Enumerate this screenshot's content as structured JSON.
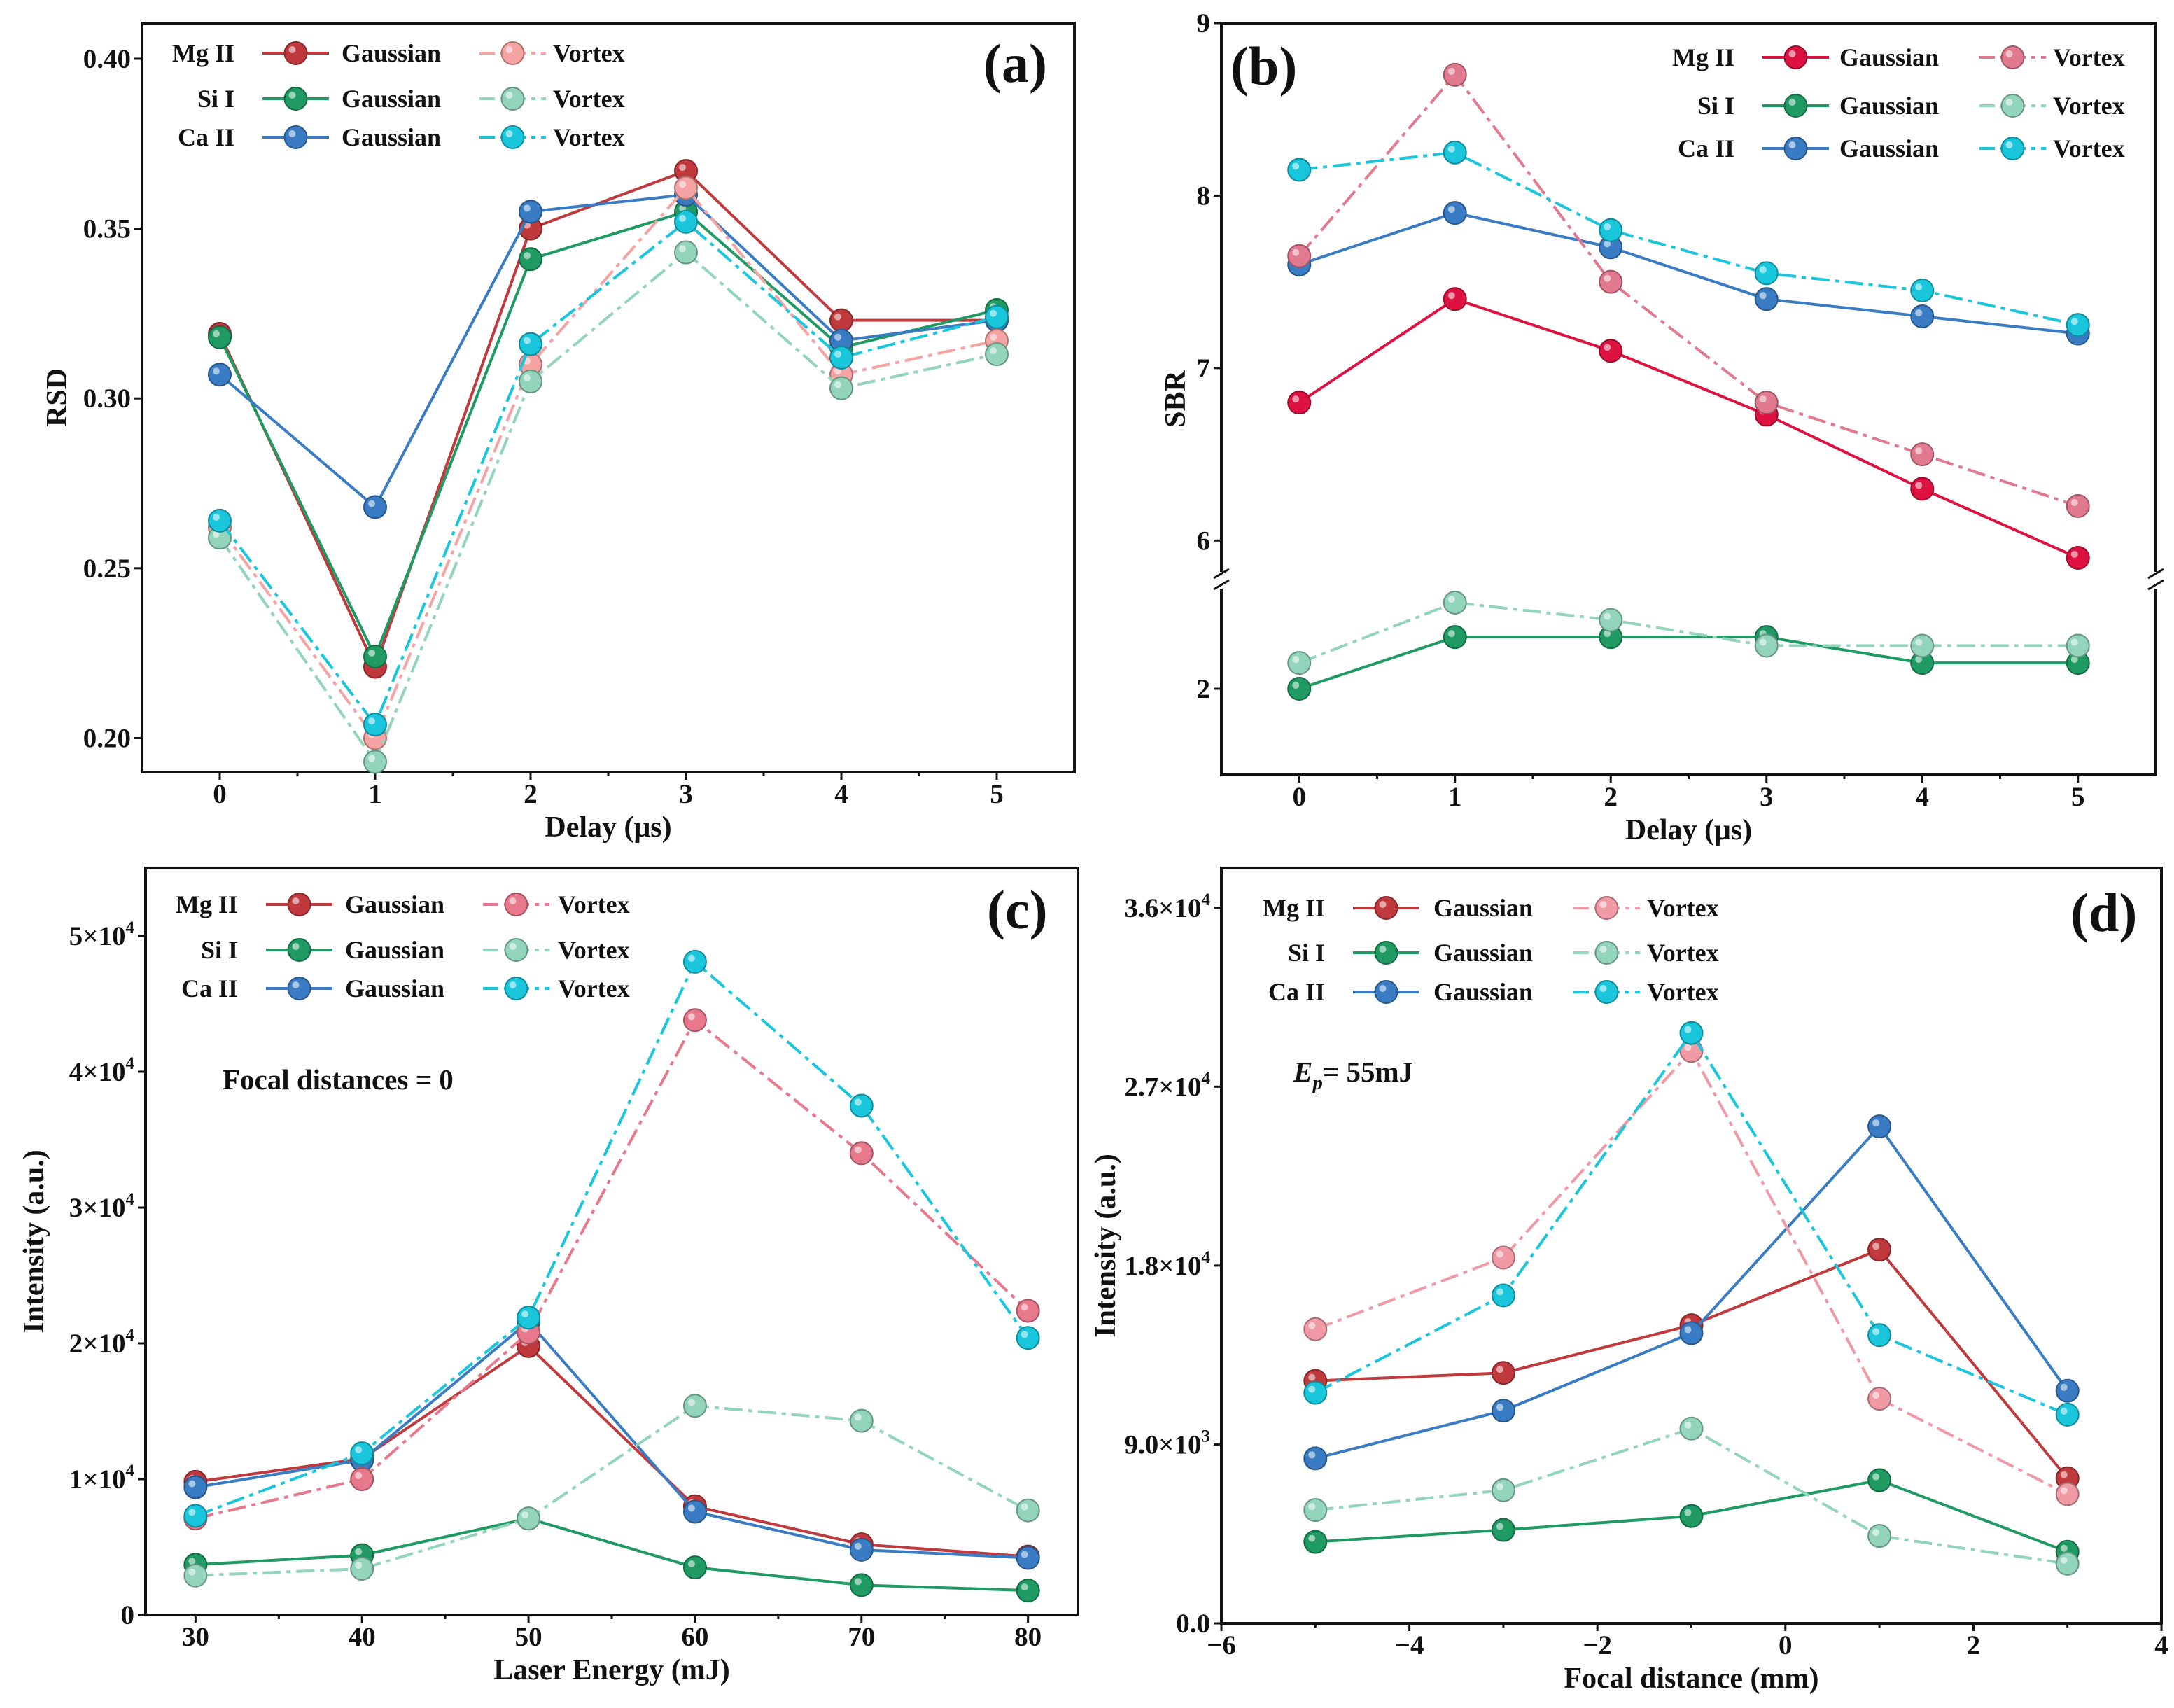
{
  "chart_data": [
    {
      "id": "a",
      "type": "line",
      "panel_label": "(a)",
      "xlabel": "Delay (μs)",
      "ylabel": "RSD",
      "xlim": [
        -0.5,
        5.5
      ],
      "ylim": [
        0.19,
        0.4105
      ],
      "xticks": [
        {
          "v": 0,
          "label": "0"
        },
        {
          "v": 1,
          "label": "1"
        },
        {
          "v": 2,
          "label": "2"
        },
        {
          "v": 3,
          "label": "3"
        },
        {
          "v": 4,
          "label": "4"
        },
        {
          "v": 5,
          "label": "5"
        }
      ],
      "yticks": [
        {
          "v": 0.2,
          "label": "0.20"
        },
        {
          "v": 0.25,
          "label": "0.25"
        },
        {
          "v": 0.3,
          "label": "0.30"
        },
        {
          "v": 0.35,
          "label": "0.35"
        },
        {
          "v": 0.4,
          "label": "0.40"
        }
      ],
      "x": [
        0,
        1,
        2,
        3,
        4,
        5
      ],
      "series": [
        {
          "element": "Mg II",
          "beam": "Gaussian",
          "color": "#c0393d",
          "values": [
            0.319,
            0.221,
            0.35,
            0.367,
            0.323,
            0.323
          ]
        },
        {
          "element": "Si  I",
          "beam": "Gaussian",
          "color": "#1f9a63",
          "values": [
            0.318,
            0.224,
            0.341,
            0.355,
            0.315,
            0.326
          ]
        },
        {
          "element": "Ca II",
          "beam": "Gaussian",
          "color": "#3a7cc4",
          "values": [
            0.307,
            0.268,
            0.355,
            0.36,
            0.317,
            0.323
          ]
        },
        {
          "element": "Mg II",
          "beam": "Vortex",
          "color": "#f5a3a3",
          "values": [
            0.262,
            0.2,
            0.31,
            0.362,
            0.307,
            0.317
          ]
        },
        {
          "element": "Si  I",
          "beam": "Vortex",
          "color": "#93d5bb",
          "values": [
            0.259,
            0.193,
            0.305,
            0.343,
            0.303,
            0.313
          ]
        },
        {
          "element": "Ca II",
          "beam": "Vortex",
          "color": "#19c6dc",
          "values": [
            0.264,
            0.204,
            0.316,
            0.352,
            0.312,
            0.324
          ]
        }
      ],
      "legend": {
        "placement": "top-left",
        "rows": [
          "Mg II",
          "Si  I",
          "Ca II"
        ],
        "gaussian": "Gaussian",
        "vortex": "Vortex"
      }
    },
    {
      "id": "b",
      "type": "line",
      "panel_label": "(b)",
      "xlabel": "Delay (μs)",
      "ylabel": "SBR",
      "xlim": [
        -0.5,
        5.5
      ],
      "ylim": [
        1.5,
        9.0
      ],
      "y_break": {
        "lower_range": [
          1.5,
          2.63
        ],
        "upper_range": [
          5.77,
          9.0
        ]
      },
      "xticks": [
        {
          "v": 0,
          "label": "0"
        },
        {
          "v": 1,
          "label": "1"
        },
        {
          "v": 2,
          "label": "2"
        },
        {
          "v": 3,
          "label": "3"
        },
        {
          "v": 4,
          "label": "4"
        },
        {
          "v": 5,
          "label": "5"
        }
      ],
      "yticks": [
        {
          "v": 2,
          "label": "2"
        },
        {
          "v": 6,
          "label": "6"
        },
        {
          "v": 7,
          "label": "7"
        },
        {
          "v": 8,
          "label": "8"
        },
        {
          "v": 9,
          "label": "9"
        }
      ],
      "x": [
        0,
        1,
        2,
        3,
        4,
        5
      ],
      "series": [
        {
          "element": "Mg II",
          "beam": "Gaussian",
          "color": "#de1240",
          "values": [
            6.8,
            7.4,
            7.1,
            6.73,
            6.3,
            5.9
          ]
        },
        {
          "element": "Si  I",
          "beam": "Gaussian",
          "color": "#1f9a63",
          "values": [
            2.0,
            2.3,
            2.3,
            2.3,
            2.15,
            2.15
          ]
        },
        {
          "element": "Ca II",
          "beam": "Gaussian",
          "color": "#3a7cc4",
          "values": [
            7.6,
            7.9,
            7.7,
            7.4,
            7.3,
            7.2
          ]
        },
        {
          "element": "Mg II",
          "beam": "Vortex",
          "color": "#e27a8f",
          "values": [
            7.65,
            8.7,
            7.5,
            6.8,
            6.5,
            6.2
          ]
        },
        {
          "element": "Si  I",
          "beam": "Vortex",
          "color": "#93d5bb",
          "values": [
            2.15,
            2.5,
            2.4,
            2.25,
            2.25,
            2.25
          ]
        },
        {
          "element": "Ca II",
          "beam": "Vortex",
          "color": "#19c6dc",
          "values": [
            8.15,
            8.25,
            7.8,
            7.55,
            7.45,
            7.25
          ]
        }
      ],
      "legend": {
        "placement": "top-right",
        "rows": [
          "Mg II",
          "Si  I",
          "Ca II"
        ],
        "gaussian": "Gaussian",
        "vortex": "Vortex"
      }
    },
    {
      "id": "c",
      "type": "line",
      "panel_label": "(c)",
      "xlabel": "Laser Energy (mJ)",
      "ylabel": "Intensity (a.u.)",
      "xlim": [
        27,
        83
      ],
      "ylim": [
        0,
        55000
      ],
      "xticks": [
        {
          "v": 30,
          "label": "30"
        },
        {
          "v": 40,
          "label": "40"
        },
        {
          "v": 50,
          "label": "50"
        },
        {
          "v": 60,
          "label": "60"
        },
        {
          "v": 70,
          "label": "70"
        },
        {
          "v": 80,
          "label": "80"
        }
      ],
      "yticks": [
        {
          "v": 0,
          "label": "0"
        },
        {
          "v": 10000,
          "label": "1×10",
          "sup": "4"
        },
        {
          "v": 20000,
          "label": "2×10",
          "sup": "4"
        },
        {
          "v": 30000,
          "label": "3×10",
          "sup": "4"
        },
        {
          "v": 40000,
          "label": "4×10",
          "sup": "4"
        },
        {
          "v": 50000,
          "label": "5×10",
          "sup": "4"
        }
      ],
      "x": [
        30,
        40,
        50,
        60,
        70,
        80
      ],
      "series": [
        {
          "element": "Mg II",
          "beam": "Gaussian",
          "color": "#c0393d",
          "values": [
            9800,
            11500,
            19800,
            8000,
            5200,
            4300
          ]
        },
        {
          "element": "Si  I",
          "beam": "Gaussian",
          "color": "#1f9a63",
          "values": [
            3700,
            4400,
            7100,
            3500,
            2200,
            1800
          ]
        },
        {
          "element": "Ca II",
          "beam": "Gaussian",
          "color": "#3a7cc4",
          "values": [
            9400,
            11400,
            21600,
            7600,
            4800,
            4200
          ]
        },
        {
          "element": "Mg II",
          "beam": "Vortex",
          "color": "#e8788c",
          "values": [
            7100,
            10000,
            20800,
            43800,
            34000,
            22400
          ]
        },
        {
          "element": "Si  I",
          "beam": "Vortex",
          "color": "#93d5bb",
          "values": [
            2900,
            3400,
            7100,
            15400,
            14300,
            7700
          ]
        },
        {
          "element": "Ca II",
          "beam": "Vortex",
          "color": "#19c6dc",
          "values": [
            7300,
            11900,
            21900,
            48100,
            37500,
            20400
          ]
        }
      ],
      "legend": {
        "placement": "top-left",
        "rows": [
          "Mg II",
          "Si  I",
          "Ca II"
        ],
        "gaussian": "Gaussian",
        "vortex": "Vortex"
      },
      "annotation": {
        "text": "Focal distances = 0"
      }
    },
    {
      "id": "d",
      "type": "line",
      "panel_label": "(d)",
      "xlabel": "Focal distance (mm)",
      "ylabel": "Intensity (a.u.)",
      "xlim": [
        -6,
        4
      ],
      "ylim": [
        0,
        38000
      ],
      "xticks": [
        {
          "v": -6,
          "label": "−6"
        },
        {
          "v": -4,
          "label": "−4"
        },
        {
          "v": -2,
          "label": "−2"
        },
        {
          "v": 0,
          "label": "0"
        },
        {
          "v": 2,
          "label": "2"
        },
        {
          "v": 4,
          "label": "4"
        }
      ],
      "yticks": [
        {
          "v": 0,
          "label": "0.0"
        },
        {
          "v": 9000,
          "label": "9.0×10",
          "sup": "3"
        },
        {
          "v": 18000,
          "label": "1.8×10",
          "sup": "4"
        },
        {
          "v": 27000,
          "label": "2.7×10",
          "sup": "4"
        },
        {
          "v": 36000,
          "label": "3.6×10",
          "sup": "4"
        }
      ],
      "x": [
        -5,
        -3,
        -1,
        1,
        3
      ],
      "series": [
        {
          "element": "Mg II",
          "beam": "Gaussian",
          "color": "#c0393d",
          "values": [
            12200,
            12600,
            15000,
            18800,
            7300
          ]
        },
        {
          "element": "Si  I",
          "beam": "Gaussian",
          "color": "#1f9a63",
          "values": [
            4100,
            4700,
            5400,
            7200,
            3600
          ]
        },
        {
          "element": "Ca II",
          "beam": "Gaussian",
          "color": "#3a7cc4",
          "values": [
            8300,
            10700,
            14600,
            25000,
            11700
          ]
        },
        {
          "element": "Mg II",
          "beam": "Vortex",
          "color": "#f09aa5",
          "values": [
            14800,
            18400,
            28800,
            11300,
            6500
          ]
        },
        {
          "element": "Si  I",
          "beam": "Vortex",
          "color": "#93d5bb",
          "values": [
            5700,
            6700,
            9800,
            4400,
            3000
          ]
        },
        {
          "element": "Ca II",
          "beam": "Vortex",
          "color": "#19c6dc",
          "values": [
            11600,
            16500,
            29700,
            14500,
            10500
          ]
        }
      ],
      "legend": {
        "placement": "top-left",
        "rows": [
          "Mg II",
          "Si  I",
          "Ca II"
        ],
        "gaussian": "Gaussian",
        "vortex": "Vortex"
      },
      "annotation": {
        "text": "= 55mJ",
        "symbol": "E",
        "subscript": "p"
      }
    }
  ]
}
